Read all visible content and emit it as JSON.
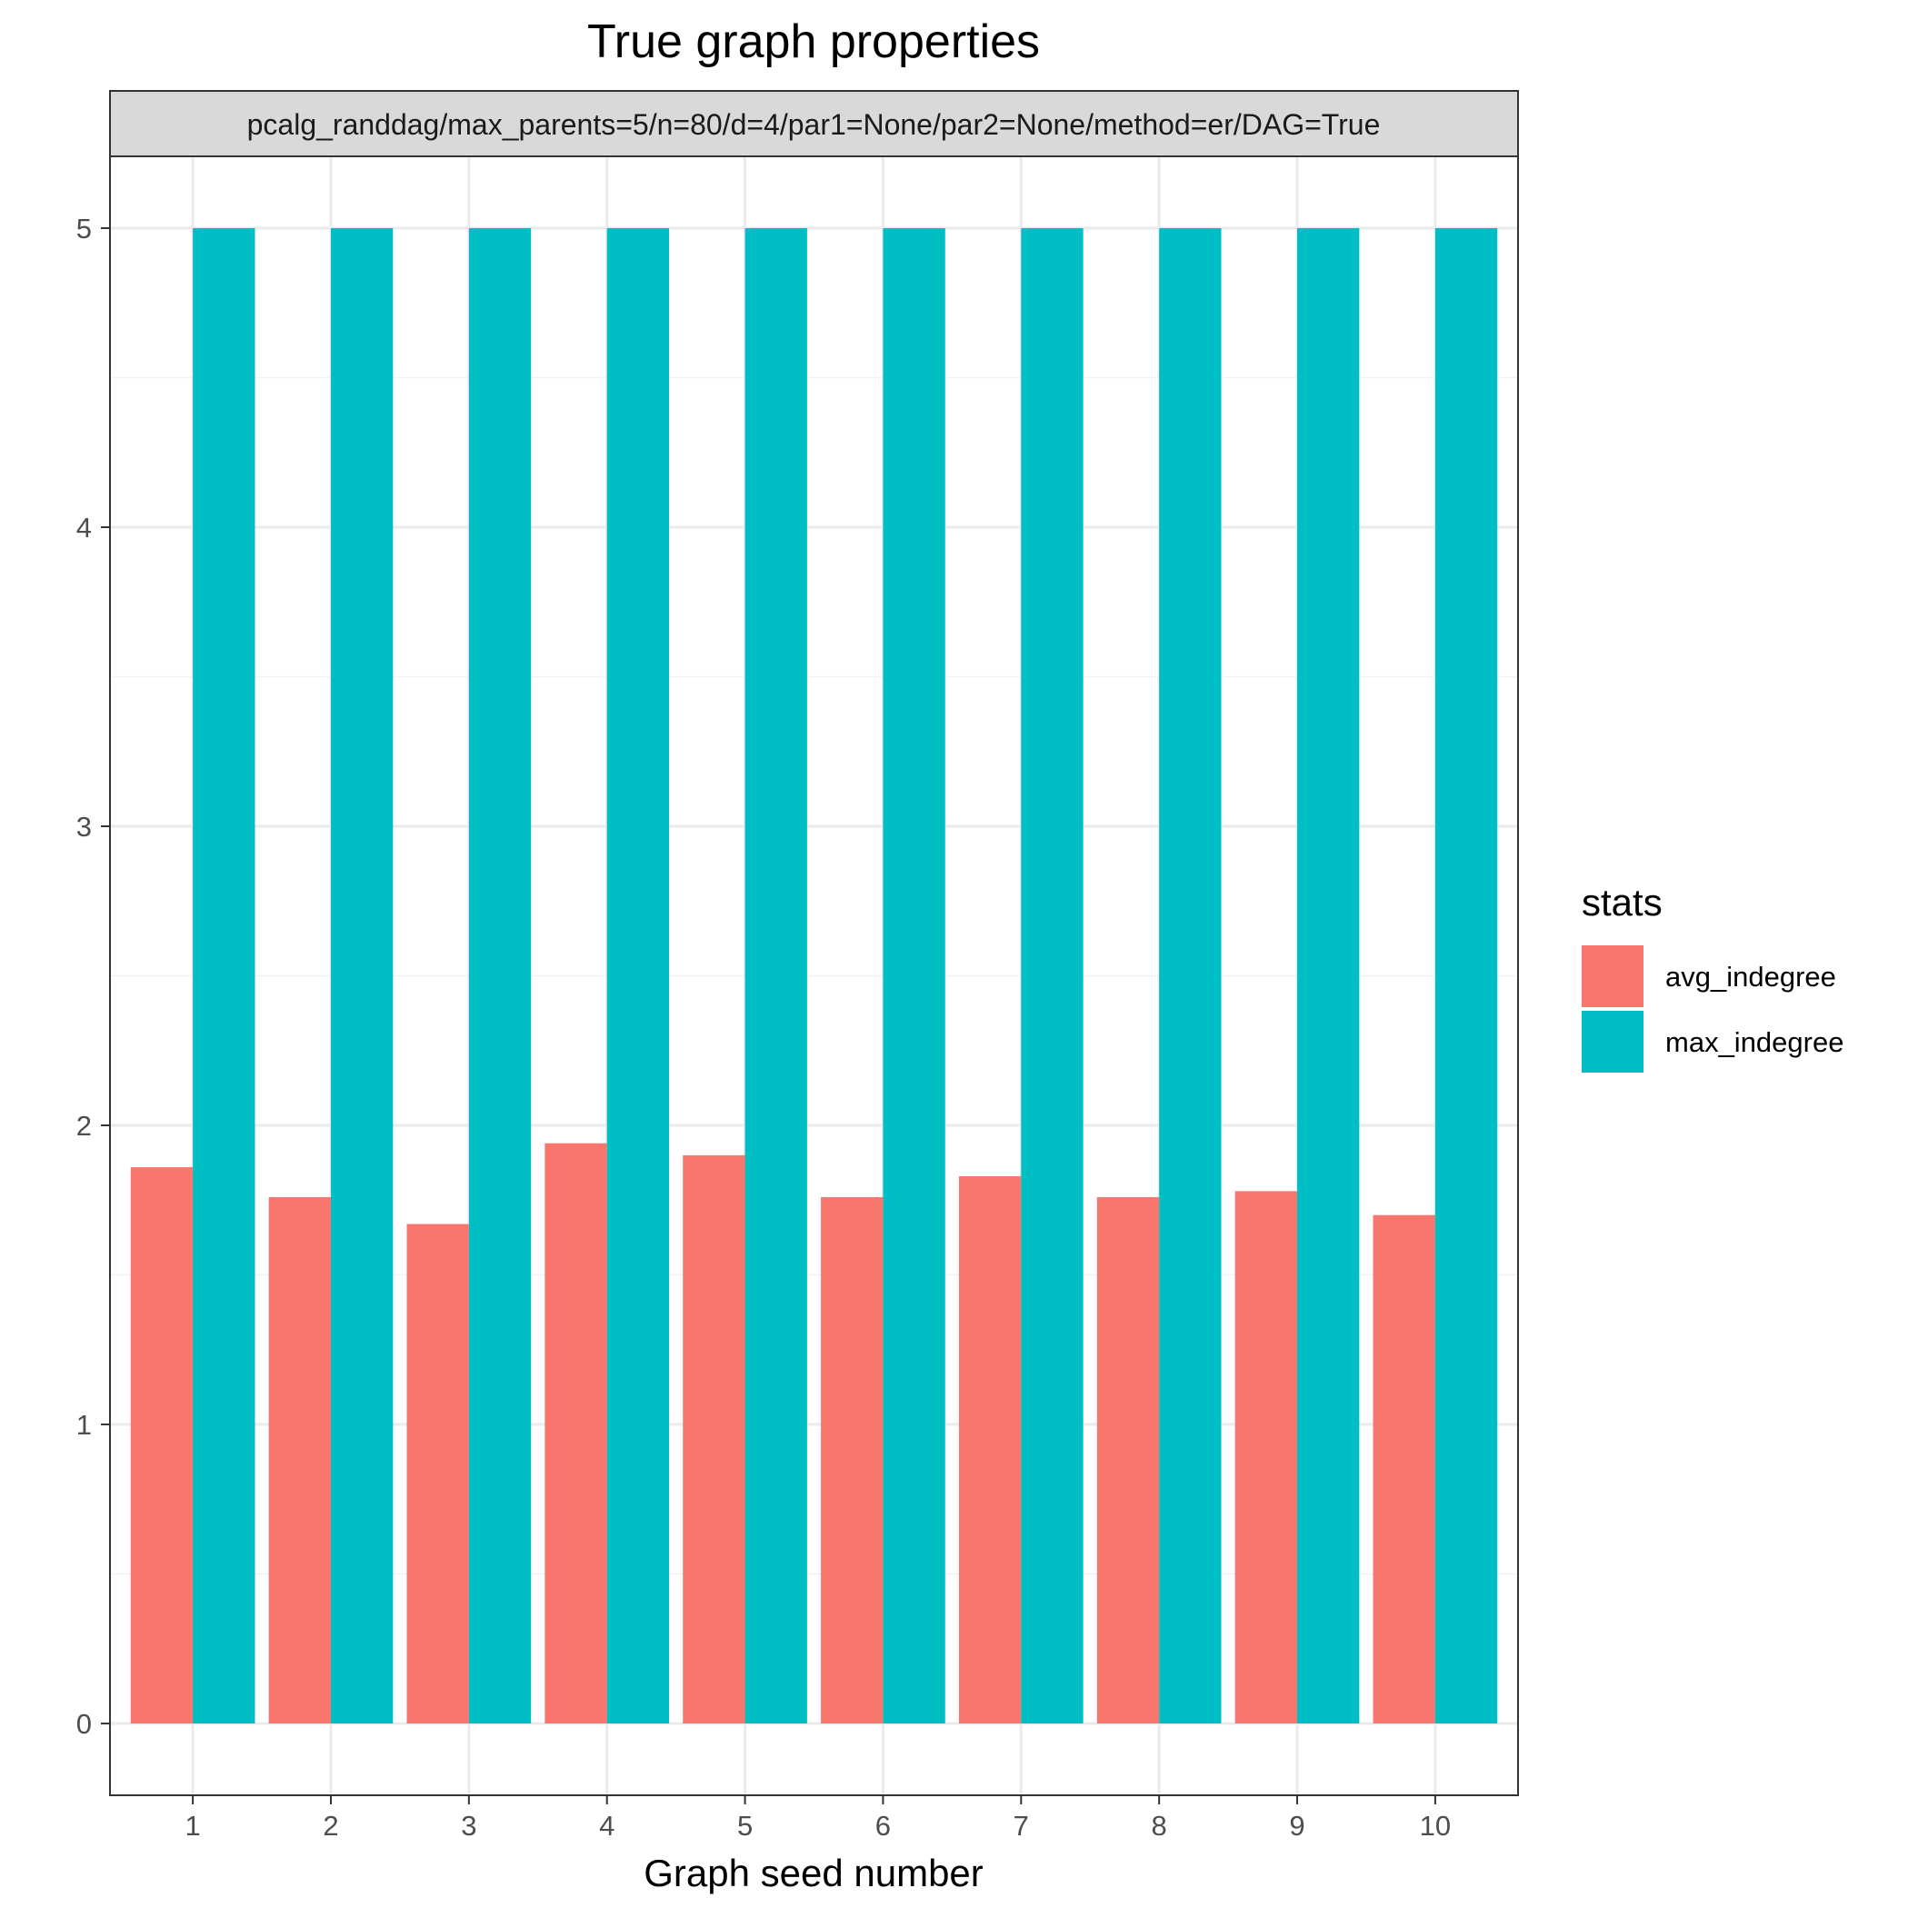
{
  "chart_data": {
    "type": "bar",
    "title": "True graph properties",
    "facet_label": "pcalg_randdag/max_parents=5/n=80/d=4/par1=None/par2=None/method=er/DAG=True",
    "xlabel": "Graph seed number",
    "ylabel": "",
    "categories": [
      "1",
      "2",
      "3",
      "4",
      "5",
      "6",
      "7",
      "8",
      "9",
      "10"
    ],
    "series": [
      {
        "name": "avg_indegree",
        "color": "#F8766D",
        "values": [
          1.86,
          1.76,
          1.67,
          1.94,
          1.9,
          1.76,
          1.83,
          1.76,
          1.78,
          1.7
        ]
      },
      {
        "name": "max_indegree",
        "color": "#00BFC4",
        "values": [
          5,
          5,
          5,
          5,
          5,
          5,
          5,
          5,
          5,
          5
        ]
      }
    ],
    "ylim": [
      -0.24,
      5.24
    ],
    "yticks": [
      "0",
      "1",
      "2",
      "3",
      "4",
      "5"
    ],
    "grid": true,
    "legend": {
      "title": "stats",
      "position": "right"
    }
  }
}
